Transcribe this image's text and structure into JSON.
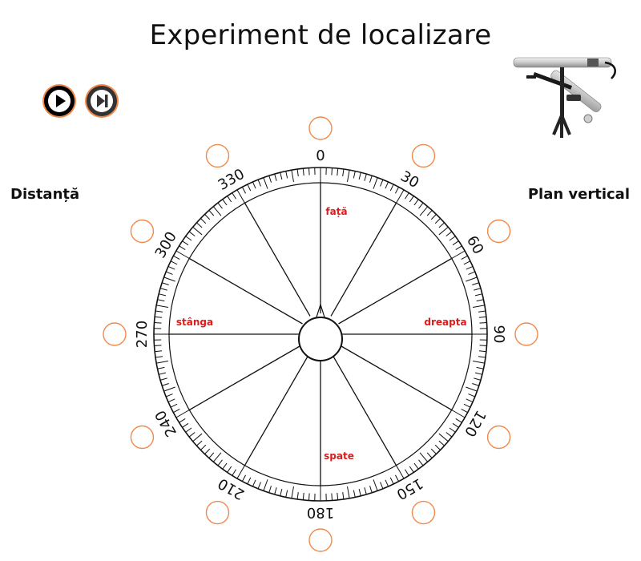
{
  "title": "Experiment de localizare",
  "left_label": "Distanță",
  "right_label": "Plan vertical",
  "controls": {
    "play_icon": "play-icon",
    "skip_icon": "skip-next-icon"
  },
  "dial": {
    "degree_labels": [
      "0",
      "30",
      "60",
      "90",
      "120",
      "150",
      "180",
      "210",
      "240",
      "270",
      "300",
      "330"
    ],
    "direction_labels": {
      "front": "față",
      "right": "dreapta",
      "back": "spate",
      "left": "stânga"
    },
    "speaker_positions": [
      "0",
      "30",
      "60",
      "90",
      "120",
      "150",
      "180",
      "210",
      "240",
      "270",
      "300",
      "330"
    ]
  },
  "colors": {
    "accent": "#f08a4b",
    "direction_text": "#e01b1b",
    "ink": "#111111"
  }
}
